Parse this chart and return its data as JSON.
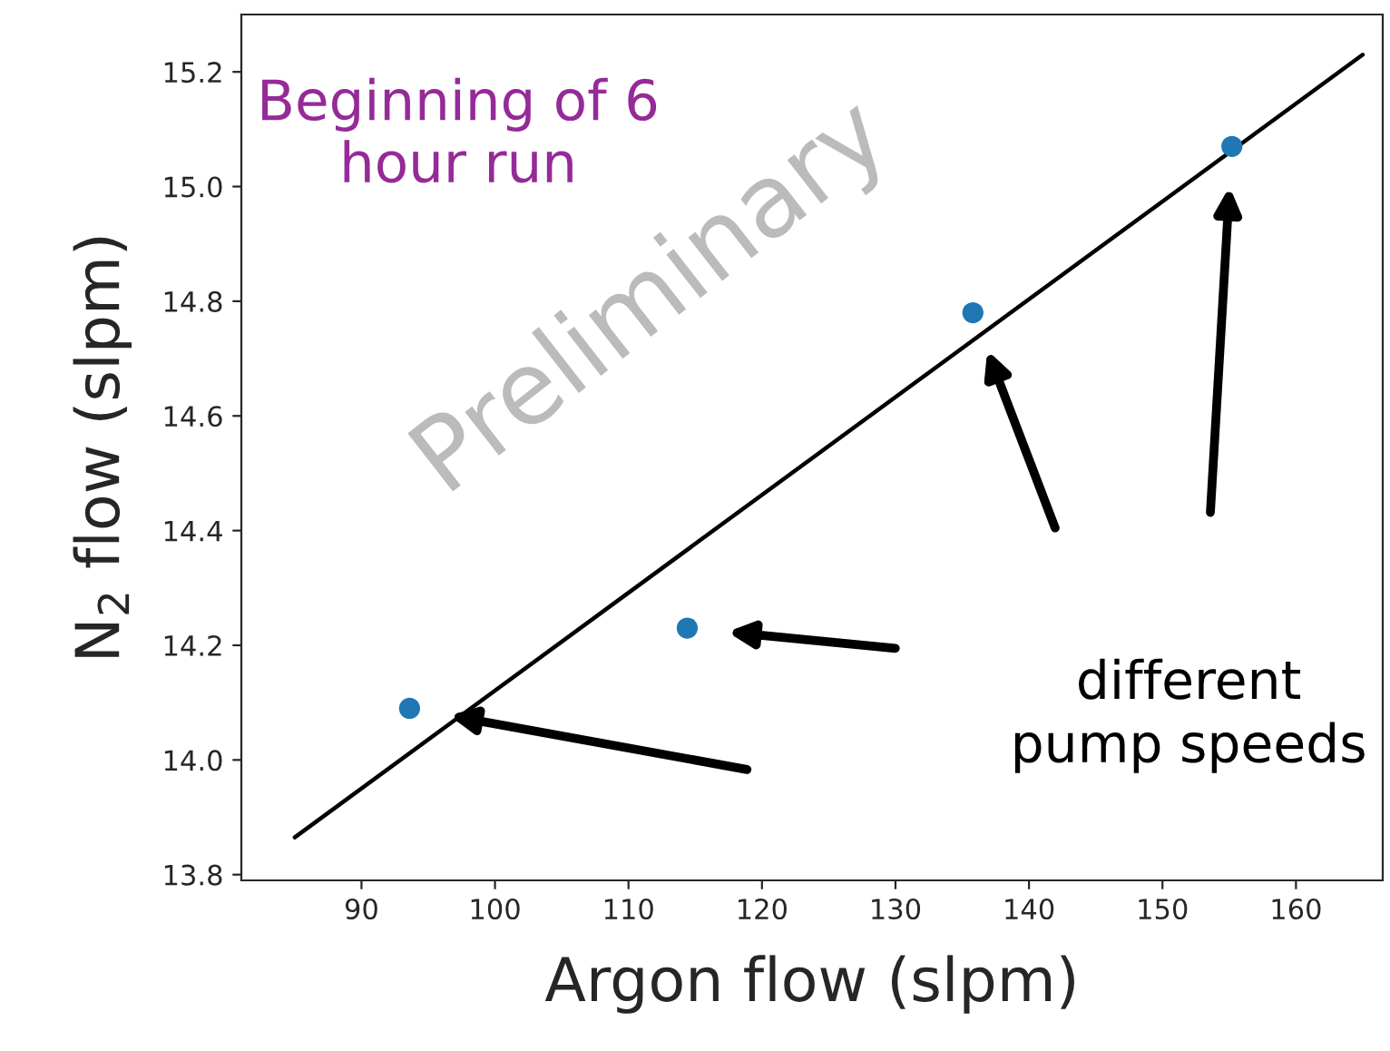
{
  "chart_data": {
    "type": "scatter",
    "xlabel": "Argon flow (slpm)",
    "ylabel": "N$_{2}$ flow (slpm)",
    "series": [
      {
        "color": "#1f77b4",
        "marker": "circle",
        "x": [
          93.6,
          114.4,
          135.8,
          155.2
        ],
        "values": [
          14.09,
          14.23,
          14.78,
          15.07
        ]
      },
      {
        "type": "line",
        "marker": "none",
        "color": "#000000",
        "x": [
          85,
          165
        ],
        "values": [
          13.865,
          15.23
        ]
      }
    ],
    "annotations": [
      "Beginning of 6 hour run",
      "Preliminary",
      "different pump speeds"
    ],
    "xlim": [
      81,
      166.5
    ],
    "ylim": [
      13.79,
      15.3
    ],
    "xticks": [
      90,
      100,
      110,
      120,
      130,
      140,
      150,
      160
    ],
    "yticks": [
      13.8,
      {
        "value": 14,
        "label": "14.0"
      },
      14.2,
      14.4,
      14.6,
      14.8,
      {
        "value": 15,
        "label": "15.0"
      },
      15.2
    ],
    "grid": false,
    "legend": false,
    "line_style": "solid"
  }
}
